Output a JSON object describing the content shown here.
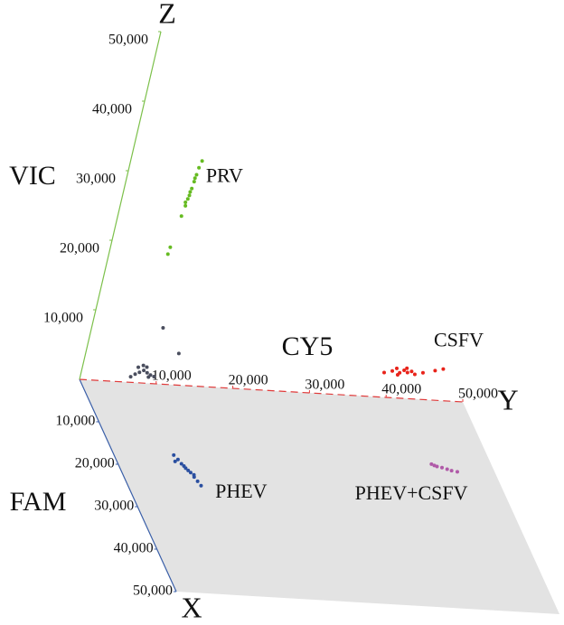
{
  "chart_data": {
    "type": "scatter3d",
    "x_label": "FAM",
    "y_label": "CY5",
    "z_label": "VIC",
    "x_axis": "X",
    "y_axis": "Y",
    "z_axis": "Z",
    "xlim": [
      0,
      50000
    ],
    "ylim": [
      0,
      50000
    ],
    "zlim": [
      0,
      50000
    ],
    "xticks": [
      {
        "value": 10000,
        "label": "10,000"
      },
      {
        "value": 20000,
        "label": "20,000"
      },
      {
        "value": 30000,
        "label": "30,000"
      },
      {
        "value": 40000,
        "label": "40,000"
      },
      {
        "value": 50000,
        "label": "50,000"
      }
    ],
    "yticks": [
      {
        "value": 10000,
        "label": "10,000"
      },
      {
        "value": 20000,
        "label": "20,000"
      },
      {
        "value": 30000,
        "label": "30,000"
      },
      {
        "value": 40000,
        "label": "40,000"
      },
      {
        "value": 50000,
        "label": "50,000"
      }
    ],
    "zticks": [
      {
        "value": 10000,
        "label": "10,000"
      },
      {
        "value": 20000,
        "label": "20,000"
      },
      {
        "value": 30000,
        "label": "30,000"
      },
      {
        "value": 40000,
        "label": "40,000"
      },
      {
        "value": 50000,
        "label": "50,000"
      }
    ],
    "series": [
      {
        "name": "PRV",
        "color": "#66bb22",
        "x": [
          0,
          0,
          0,
          0,
          0,
          0,
          0,
          0,
          0,
          0,
          0,
          0,
          0,
          0
        ],
        "y": [
          8200,
          8400,
          8500,
          8600,
          8700,
          8800,
          8900,
          9000,
          8300,
          8600,
          8800,
          7600,
          7700,
          9200
        ],
        "z": [
          24000,
          25500,
          26500,
          27500,
          28000,
          29000,
          30000,
          31000,
          26000,
          27000,
          29500,
          18500,
          19500,
          32000
        ]
      },
      {
        "color": "#4a4e5e",
        "x": [
          0,
          0,
          0,
          0,
          0,
          0,
          0,
          0,
          0,
          0,
          0,
          0,
          0
        ],
        "y": [
          6500,
          7000,
          7500,
          8000,
          8500,
          9000,
          7200,
          7800,
          8300,
          8800,
          9500,
          9200,
          12000
        ],
        "z": [
          800,
          1200,
          1500,
          1800,
          1500,
          1200,
          2200,
          2500,
          2300,
          900,
          1000,
          8000,
          4500
        ]
      },
      {
        "name": "CSFV",
        "color": "#e8231a",
        "x": [
          0,
          0,
          0,
          0,
          0,
          0,
          0,
          0,
          0,
          0,
          0,
          0,
          0
        ],
        "y": [
          39000,
          40000,
          40500,
          41000,
          41500,
          42000,
          42500,
          43000,
          40800,
          41800,
          44000,
          45500,
          46500
        ],
        "z": [
          3500,
          3800,
          4200,
          3600,
          4000,
          3700,
          3900,
          3500,
          3300,
          4300,
          3800,
          4200,
          4500
        ]
      },
      {
        "name": "PHEV",
        "color": "#2a4fa0",
        "x": [
          17000,
          18000,
          19000,
          19500,
          20000,
          20500,
          21000,
          22000,
          23000,
          24000,
          18500,
          21500
        ],
        "y": [
          8000,
          8300,
          8500,
          8700,
          8800,
          9000,
          9200,
          9400,
          9600,
          9800,
          7800,
          9500
        ],
        "z": [
          0,
          0,
          0,
          0,
          0,
          0,
          0,
          0,
          0,
          0,
          0,
          0
        ]
      },
      {
        "name": "PHEV+CSFV",
        "color": "#b05aa8",
        "x": [
          15500,
          16000,
          16200,
          16500,
          16800,
          17000,
          15800
        ],
        "y": [
          42000,
          42600,
          43200,
          43800,
          44300,
          45000,
          42300
        ],
        "z": [
          0,
          0,
          0,
          0,
          0,
          0,
          0
        ]
      }
    ]
  }
}
